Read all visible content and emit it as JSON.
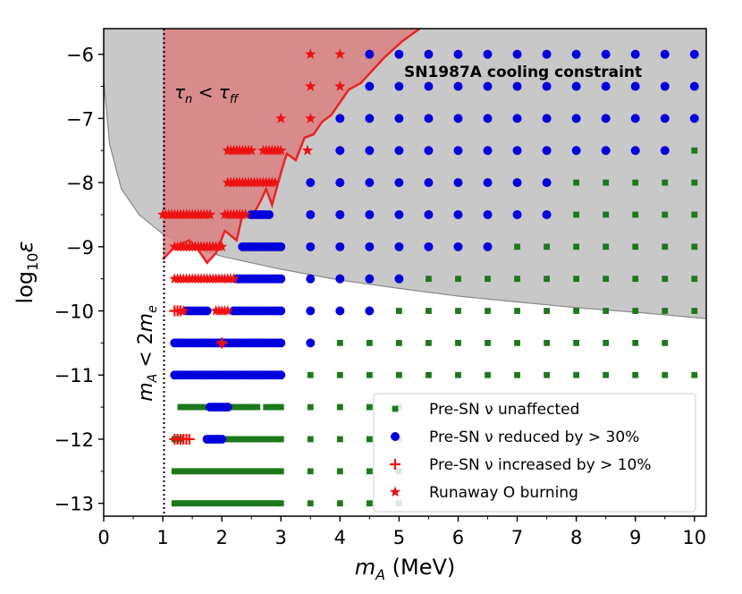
{
  "chart_data": {
    "type": "scatter",
    "title": "",
    "xlabel": "m_A (MeV)",
    "ylabel": "log10 ε",
    "xlim": [
      0,
      10.2
    ],
    "ylim": [
      -13.2,
      -5.6
    ],
    "x_ticks": [
      "0",
      "1",
      "2",
      "3",
      "4",
      "5",
      "6",
      "7",
      "8",
      "9",
      "10"
    ],
    "y_ticks": [
      "−6",
      "−7",
      "−8",
      "−9",
      "−10",
      "−11",
      "−12",
      "−13"
    ],
    "x_tick_values": [
      0,
      1,
      2,
      3,
      4,
      5,
      6,
      7,
      8,
      9,
      10
    ],
    "y_tick_values": [
      -6,
      -7,
      -8,
      -9,
      -10,
      -11,
      -12,
      -13
    ],
    "threshold_label": "m_A < 2m_e",
    "threshold_x": 1.022,
    "annotations": {
      "sn1987a": "SN1987A cooling constraint",
      "tau": "τ_n < τ_ff"
    },
    "sn1987a_boundary": [
      [
        0,
        -6.4
      ],
      [
        0.1,
        -7.4
      ],
      [
        0.3,
        -8.1
      ],
      [
        0.6,
        -8.5
      ],
      [
        1,
        -8.8
      ],
      [
        1.5,
        -9.0
      ],
      [
        2,
        -9.15
      ],
      [
        3,
        -9.35
      ],
      [
        4,
        -9.52
      ],
      [
        5,
        -9.65
      ],
      [
        6,
        -9.77
      ],
      [
        7,
        -9.86
      ],
      [
        8,
        -9.95
      ],
      [
        9,
        -10.02
      ],
      [
        10.2,
        -10.12
      ]
    ],
    "tau_boundary": [
      [
        1.0,
        -9.2
      ],
      [
        1.2,
        -9.0
      ],
      [
        1.45,
        -8.9
      ],
      [
        1.6,
        -9.05
      ],
      [
        1.75,
        -9.25
      ],
      [
        1.9,
        -9.1
      ],
      [
        2.05,
        -8.75
      ],
      [
        2.25,
        -8.9
      ],
      [
        2.35,
        -8.5
      ],
      [
        2.5,
        -8.55
      ],
      [
        2.65,
        -8.3
      ],
      [
        2.75,
        -8.1
      ],
      [
        2.85,
        -8.35
      ],
      [
        3.0,
        -7.85
      ],
      [
        3.1,
        -7.55
      ],
      [
        3.25,
        -7.65
      ],
      [
        3.4,
        -7.3
      ],
      [
        3.55,
        -7.25
      ],
      [
        3.7,
        -7.05
      ],
      [
        3.85,
        -6.95
      ],
      [
        4.0,
        -6.75
      ],
      [
        4.15,
        -6.55
      ],
      [
        4.35,
        -6.45
      ],
      [
        4.5,
        -6.3
      ],
      [
        4.75,
        -6.05
      ],
      [
        5.05,
        -5.8
      ],
      [
        5.35,
        -5.6
      ]
    ],
    "legend": {
      "position": "lower-right",
      "entries": [
        {
          "label": "Pre-SN ν unaffected",
          "marker": "square",
          "color": "#1a7a1a"
        },
        {
          "label": "Pre-SN ν reduced by > 30%",
          "marker": "circle",
          "color": "#0000dd"
        },
        {
          "label": "Pre-SN ν increased by > 10%",
          "marker": "plus",
          "color": "#ee1111"
        },
        {
          "label": "Runaway O burning",
          "marker": "star",
          "color": "#ee1111"
        }
      ]
    },
    "colors": {
      "unaffected": "#1a7a1a",
      "reduced": "#0000dd",
      "increased": "#ee1111",
      "runaway": "#ee1111",
      "sn_fill": "#bebebe",
      "tau_fill": "#d98080",
      "tau_line": "#ee2222"
    },
    "series": [
      {
        "name": "Pre-SN ν unaffected",
        "marker": "square",
        "points": [
          [
            -13,
            1.2,
            3.0,
            0.05
          ],
          [
            -12.5,
            1.2,
            3.0,
            0.05
          ],
          [
            -12,
            1.2,
            1.3,
            0.05
          ],
          [
            -12,
            2.1,
            3.0,
            0.05
          ],
          [
            -11.5,
            1.3,
            1.7,
            0.05
          ],
          [
            -11.5,
            2.1,
            2.6,
            0.05
          ],
          [
            -11.5,
            2.75,
            3.0,
            0.05
          ],
          [
            -13,
            3.5,
            5.0,
            0.5
          ],
          [
            -12.5,
            3.5,
            5.0,
            0.5
          ],
          [
            -12,
            3.5,
            5.0,
            0.5
          ],
          [
            -11.5,
            3.5,
            5.0,
            0.5
          ],
          [
            -11,
            3.5,
            10.0,
            0.5
          ],
          [
            -10.5,
            3.5,
            9.5,
            0.5
          ],
          [
            -10,
            5.0,
            10.0,
            0.5
          ],
          [
            -9.5,
            5.5,
            10.0,
            0.5
          ],
          [
            -9,
            7.0,
            10.0,
            0.5
          ],
          [
            -8.5,
            6.0,
            10.0,
            0.5
          ],
          [
            -8,
            8.0,
            10.0,
            0.5
          ],
          [
            -7.5,
            10.0,
            10.0,
            0.5
          ]
        ]
      },
      {
        "name": "Pre-SN ν reduced by > 30%",
        "marker": "circle",
        "points": [
          [
            -12,
            1.75,
            2.0,
            0.05
          ],
          [
            -11.5,
            1.8,
            2.1,
            0.05
          ],
          [
            -11,
            1.2,
            3.0,
            0.05
          ],
          [
            -10.5,
            1.2,
            3.0,
            0.05
          ],
          [
            -10,
            1.4,
            1.75,
            0.05
          ],
          [
            -10,
            2.2,
            3.0,
            0.05
          ],
          [
            -9.5,
            2.25,
            3.0,
            0.05
          ],
          [
            -9,
            2.35,
            3.0,
            0.05
          ],
          [
            -8.5,
            2.5,
            2.8,
            0.05
          ],
          [
            -10.5,
            3.5,
            3.5,
            0.5
          ],
          [
            -10,
            3.5,
            4.5,
            0.5
          ],
          [
            -9.5,
            3.5,
            5.0,
            0.5
          ],
          [
            -9,
            3.5,
            6.5,
            0.5
          ],
          [
            -8.5,
            3.5,
            7.5,
            0.5
          ],
          [
            -8,
            3.5,
            7.5,
            0.5
          ],
          [
            -7.5,
            4.0,
            9.5,
            0.5
          ],
          [
            -7,
            4.0,
            10.0,
            0.5
          ],
          [
            -6.5,
            4.5,
            10.0,
            0.5
          ],
          [
            -6,
            4.5,
            10.0,
            0.5
          ]
        ]
      },
      {
        "name": "Pre-SN ν increased by > 10%",
        "marker": "plus",
        "points": [
          [
            -12,
            1.2,
            1.45,
            0.05
          ],
          [
            -10.5,
            2.0,
            2.0,
            0.05
          ],
          [
            -10,
            1.2,
            1.3,
            0.05
          ]
        ]
      },
      {
        "name": "Runaway O burning",
        "marker": "star",
        "points": [
          [
            -10.5,
            2.0,
            2.0,
            0.05
          ],
          [
            -10,
            1.3,
            1.35,
            0.05
          ],
          [
            -10,
            1.9,
            2.1,
            0.05
          ],
          [
            -9.5,
            1.2,
            2.2,
            0.05
          ],
          [
            -9,
            1.2,
            2.0,
            0.05
          ],
          [
            -8.5,
            1.0,
            1.8,
            0.05
          ],
          [
            -8.5,
            2.05,
            2.4,
            0.05
          ],
          [
            -8,
            2.1,
            2.9,
            0.05
          ],
          [
            -7.5,
            2.1,
            2.5,
            0.05
          ],
          [
            -7.5,
            2.7,
            3.0,
            0.05
          ],
          [
            -7.5,
            3.45,
            3.45,
            0.5
          ],
          [
            -7,
            3.0,
            3.5,
            0.5
          ],
          [
            -6.5,
            3.5,
            4.0,
            0.5
          ],
          [
            -6,
            3.5,
            4.0,
            0.5
          ]
        ]
      }
    ]
  }
}
